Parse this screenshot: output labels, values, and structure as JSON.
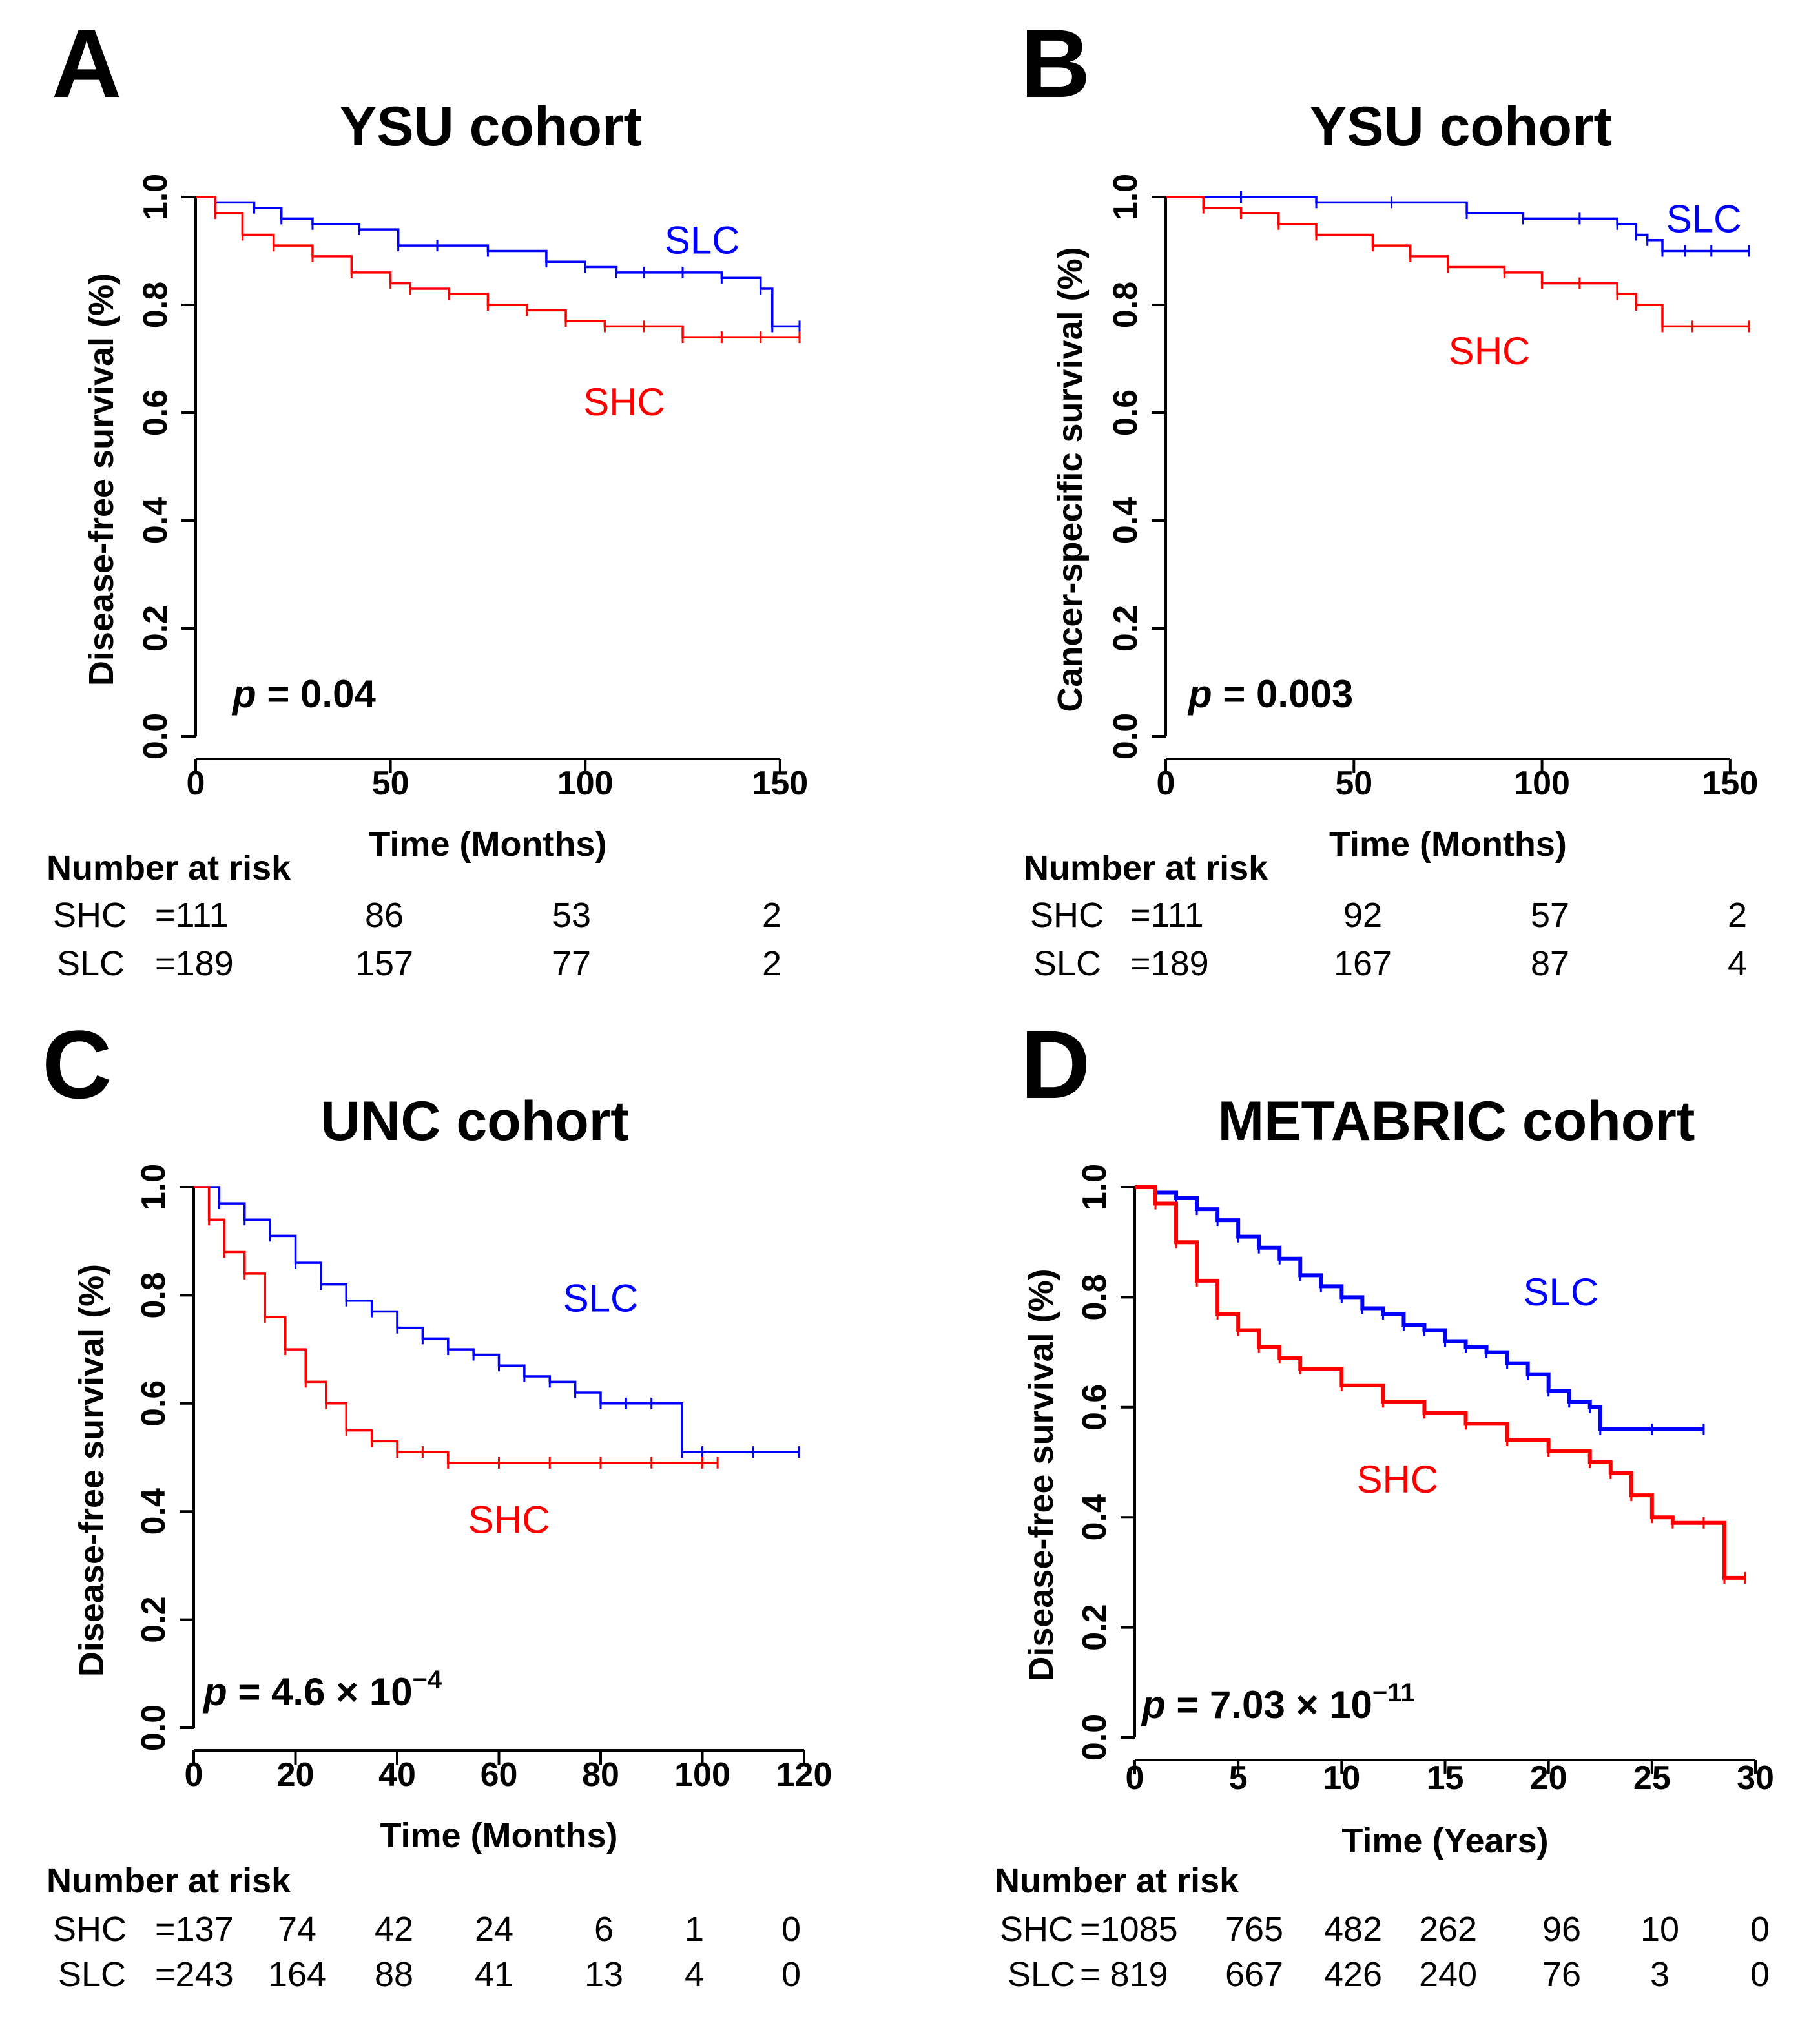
{
  "chart_data": [
    {
      "type": "line",
      "panel_letter": "A",
      "title": "YSU cohort",
      "xlabel": "Time (Months)",
      "ylabel": "Disease-free survival (%)",
      "xlim": [
        0,
        155
      ],
      "ylim": [
        0,
        1
      ],
      "xticks": [
        0,
        50,
        100,
        150
      ],
      "yticks": [
        "0.0",
        "0.2",
        "0.4",
        "0.6",
        "0.8",
        "1.0"
      ],
      "p_symbol": "p",
      "p_rest": " = 0.04",
      "p_exp": "",
      "series": [
        {
          "name": "SLC",
          "color": "#0000ff",
          "x": [
            0,
            5,
            15,
            22,
            30,
            42,
            52,
            62,
            75,
            90,
            100,
            108,
            115,
            125,
            135,
            145,
            148,
            155
          ],
          "y": [
            1.0,
            0.99,
            0.98,
            0.96,
            0.95,
            0.94,
            0.91,
            0.91,
            0.9,
            0.88,
            0.87,
            0.86,
            0.86,
            0.86,
            0.85,
            0.83,
            0.76,
            0.76
          ]
        },
        {
          "name": "SHC",
          "color": "#ff0000",
          "x": [
            0,
            5,
            12,
            20,
            30,
            40,
            50,
            55,
            65,
            75,
            85,
            95,
            105,
            115,
            125,
            135,
            145,
            155
          ],
          "y": [
            1.0,
            0.97,
            0.93,
            0.91,
            0.89,
            0.86,
            0.84,
            0.83,
            0.82,
            0.8,
            0.79,
            0.77,
            0.76,
            0.76,
            0.74,
            0.74,
            0.74,
            0.74
          ]
        }
      ],
      "series_labels": [
        {
          "text": "SLC",
          "color": "#0000ff",
          "x": 130,
          "y": 0.895
        },
        {
          "text": "SHC",
          "color": "#ff0000",
          "x": 110,
          "y": 0.595
        }
      ],
      "risk_header": "Number at risk",
      "risk": [
        {
          "label": "SHC",
          "counts": [
            "=111",
            "86",
            "53",
            "2"
          ]
        },
        {
          "label": "SLC",
          "counts": [
            "=189",
            "157",
            "77",
            "2"
          ]
        }
      ]
    },
    {
      "type": "line",
      "panel_letter": "B",
      "title": "YSU cohort",
      "xlabel": "Time (Months)",
      "ylabel": "Cancer-specific survival (%)",
      "xlim": [
        0,
        155
      ],
      "ylim": [
        0,
        1
      ],
      "xticks": [
        0,
        50,
        100,
        150
      ],
      "yticks": [
        "0.0",
        "0.2",
        "0.4",
        "0.6",
        "0.8",
        "1.0"
      ],
      "p_symbol": "p",
      "p_rest": " = 0.003",
      "p_exp": "",
      "series": [
        {
          "name": "SLC",
          "color": "#0000ff",
          "x": [
            0,
            20,
            40,
            60,
            80,
            95,
            110,
            120,
            125,
            128,
            132,
            138,
            145,
            155
          ],
          "y": [
            1.0,
            1.0,
            0.99,
            0.99,
            0.97,
            0.96,
            0.96,
            0.95,
            0.93,
            0.92,
            0.9,
            0.9,
            0.9,
            0.9
          ]
        },
        {
          "name": "SHC",
          "color": "#ff0000",
          "x": [
            0,
            10,
            20,
            30,
            40,
            55,
            65,
            75,
            90,
            100,
            110,
            120,
            125,
            132,
            140,
            155
          ],
          "y": [
            1.0,
            0.98,
            0.97,
            0.95,
            0.93,
            0.91,
            0.89,
            0.87,
            0.86,
            0.84,
            0.84,
            0.82,
            0.8,
            0.76,
            0.76,
            0.76
          ]
        }
      ],
      "series_labels": [
        {
          "text": "SLC",
          "color": "#0000ff",
          "x": 143,
          "y": 0.935
        },
        {
          "text": "SHC",
          "color": "#ff0000",
          "x": 86,
          "y": 0.69
        }
      ],
      "risk_header": "Number at risk",
      "risk": [
        {
          "label": "SHC",
          "counts": [
            "=111",
            "92",
            "57",
            "2"
          ]
        },
        {
          "label": "SLC",
          "counts": [
            "=189",
            "167",
            "87",
            "4"
          ]
        }
      ]
    },
    {
      "type": "line",
      "panel_letter": "C",
      "title": "UNC cohort",
      "xlabel": "Time (Months)",
      "ylabel": "Disease-free survival (%)",
      "xlim": [
        0,
        120
      ],
      "ylim": [
        0,
        1
      ],
      "xticks": [
        0,
        20,
        40,
        60,
        80,
        100,
        120
      ],
      "yticks": [
        "0.0",
        "0.2",
        "0.4",
        "0.6",
        "0.8",
        "1.0"
      ],
      "p_symbol": "p",
      "p_rest": " = 4.6 × 10",
      "p_exp": "−4",
      "series": [
        {
          "name": "SLC",
          "color": "#0000ff",
          "x": [
            0,
            5,
            10,
            15,
            20,
            25,
            30,
            35,
            40,
            45,
            50,
            55,
            60,
            65,
            70,
            75,
            80,
            85,
            90,
            96,
            100,
            110,
            119
          ],
          "y": [
            1.0,
            0.97,
            0.94,
            0.91,
            0.86,
            0.82,
            0.79,
            0.77,
            0.74,
            0.72,
            0.7,
            0.69,
            0.67,
            0.65,
            0.64,
            0.62,
            0.6,
            0.6,
            0.6,
            0.51,
            0.51,
            0.51,
            0.51
          ]
        },
        {
          "name": "SHC",
          "color": "#ff0000",
          "x": [
            0,
            3,
            6,
            10,
            14,
            18,
            22,
            26,
            30,
            35,
            40,
            45,
            50,
            60,
            70,
            80,
            90,
            100,
            103
          ],
          "y": [
            1.0,
            0.94,
            0.88,
            0.84,
            0.76,
            0.7,
            0.64,
            0.6,
            0.55,
            0.53,
            0.51,
            0.51,
            0.49,
            0.49,
            0.49,
            0.49,
            0.49,
            0.49,
            0.49
          ]
        }
      ],
      "series_labels": [
        {
          "text": "SLC",
          "color": "#0000ff",
          "x": 80,
          "y": 0.77
        },
        {
          "text": "SHC",
          "color": "#ff0000",
          "x": 62,
          "y": 0.36
        }
      ],
      "risk_header": "Number at risk",
      "risk": [
        {
          "label": "SHC",
          "counts": [
            "=137",
            "74",
            "42",
            "24",
            "6",
            "1",
            "0"
          ]
        },
        {
          "label": "SLC",
          "counts": [
            "=243",
            "164",
            "88",
            "41",
            "13",
            "4",
            "0"
          ]
        }
      ]
    },
    {
      "type": "line",
      "panel_letter": "D",
      "title": "METABRIC cohort",
      "xlabel": "Time (Years)",
      "ylabel": "Disease-free survival (%)",
      "xlim": [
        0,
        30
      ],
      "ylim": [
        0,
        1
      ],
      "xticks": [
        0,
        5,
        10,
        15,
        20,
        25,
        30
      ],
      "yticks": [
        "0.0",
        "0.2",
        "0.4",
        "0.6",
        "0.8",
        "1.0"
      ],
      "p_symbol": "p",
      "p_rest": " = 7.03 × 10",
      "p_exp": "−11",
      "series": [
        {
          "name": "SLC",
          "color": "#0000ff",
          "x": [
            0,
            1,
            2,
            3,
            4,
            5,
            6,
            7,
            8,
            9,
            10,
            11,
            12,
            13,
            14,
            15,
            16,
            17,
            18,
            19,
            20,
            21,
            22,
            22.5,
            25,
            27.5
          ],
          "y": [
            1.0,
            0.99,
            0.98,
            0.96,
            0.94,
            0.91,
            0.89,
            0.87,
            0.84,
            0.82,
            0.8,
            0.78,
            0.77,
            0.75,
            0.74,
            0.72,
            0.71,
            0.7,
            0.68,
            0.66,
            0.63,
            0.61,
            0.6,
            0.56,
            0.56,
            0.56
          ]
        },
        {
          "name": "SHC",
          "color": "#ff0000",
          "x": [
            0,
            1,
            2,
            3,
            4,
            5,
            6,
            7,
            8,
            10,
            12,
            14,
            16,
            18,
            20,
            22,
            23,
            24,
            25,
            26,
            27.5,
            28.5,
            29.5
          ],
          "y": [
            1.0,
            0.97,
            0.9,
            0.83,
            0.77,
            0.74,
            0.71,
            0.69,
            0.67,
            0.64,
            0.61,
            0.59,
            0.57,
            0.54,
            0.52,
            0.5,
            0.48,
            0.44,
            0.4,
            0.39,
            0.39,
            0.29,
            0.29
          ]
        }
      ],
      "series_labels": [
        {
          "text": "SLC",
          "color": "#0000ff",
          "x": 20.6,
          "y": 0.785
        },
        {
          "text": "SHC",
          "color": "#ff0000",
          "x": 12.7,
          "y": 0.445
        }
      ],
      "risk_header": "Number at risk",
      "risk": [
        {
          "label": "SHC",
          "counts": [
            "=1085",
            "765",
            "482",
            "262",
            "96",
            "10",
            "0"
          ]
        },
        {
          "label": "SLC",
          "counts": [
            "= 819",
            "667",
            "426",
            "240",
            "76",
            "3",
            "0"
          ]
        }
      ]
    }
  ]
}
